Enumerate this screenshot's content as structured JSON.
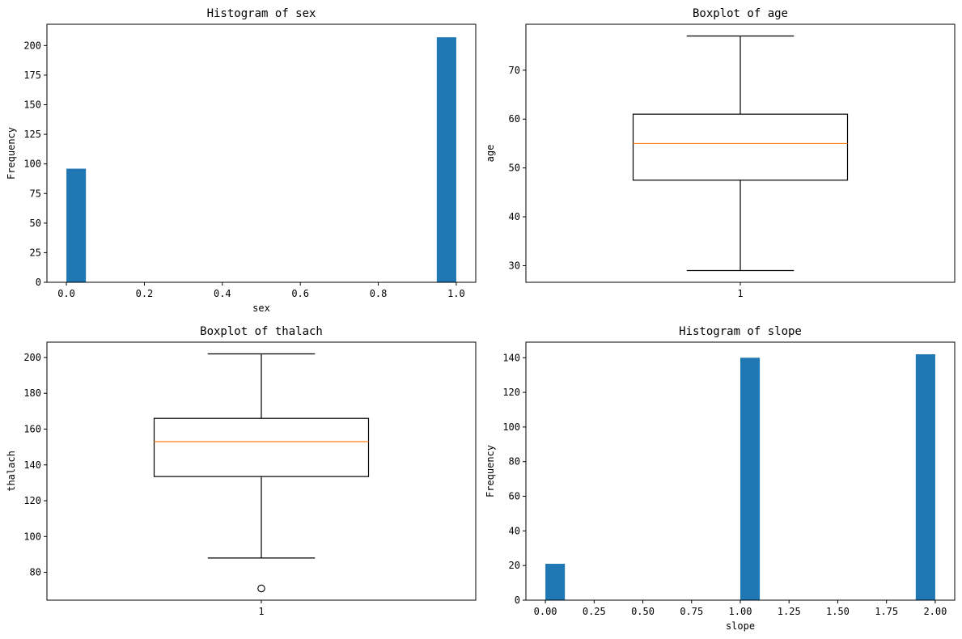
{
  "figure": {
    "background": "#ffffff"
  },
  "chart_data": [
    {
      "type": "bar",
      "subtype": "histogram",
      "title": "Histogram of sex",
      "xlabel": "sex",
      "ylabel": "Frequency",
      "xlim": [
        -0.05,
        1.05
      ],
      "ylim": [
        0,
        218
      ],
      "xticks": [
        0.0,
        0.2,
        0.4,
        0.6,
        0.8,
        1.0
      ],
      "xtick_labels": [
        "0.0",
        "0.2",
        "0.4",
        "0.6",
        "0.8",
        "1.0"
      ],
      "yticks": [
        0,
        25,
        50,
        75,
        100,
        125,
        150,
        175,
        200
      ],
      "ytick_labels": [
        "0",
        "25",
        "50",
        "75",
        "100",
        "125",
        "150",
        "175",
        "200"
      ],
      "bins": [
        {
          "start": 0.0,
          "end": 0.05,
          "value": 96
        },
        {
          "start": 0.95,
          "end": 1.0,
          "value": 207
        }
      ],
      "bar_color": "#1f77b4",
      "grid": false
    },
    {
      "type": "box",
      "title": "Boxplot of age",
      "xlabel": "",
      "ylabel": "age",
      "xlim": [
        0.5,
        1.5
      ],
      "ylim": [
        26.6,
        79.4
      ],
      "xticks": [
        1
      ],
      "xtick_labels": [
        "1"
      ],
      "yticks": [
        30,
        40,
        50,
        60,
        70
      ],
      "ytick_labels": [
        "30",
        "40",
        "50",
        "60",
        "70"
      ],
      "box": {
        "position": 1,
        "whisker_low": 29,
        "q1": 47.5,
        "median": 55,
        "q3": 61,
        "whisker_high": 77,
        "outliers": []
      },
      "median_color": "#ff7f0e",
      "grid": false
    },
    {
      "type": "box",
      "title": "Boxplot of thalach",
      "xlabel": "",
      "ylabel": "thalach",
      "xlim": [
        0.5,
        1.5
      ],
      "ylim": [
        64.44,
        208.56
      ],
      "xticks": [
        1
      ],
      "xtick_labels": [
        "1"
      ],
      "yticks": [
        80,
        100,
        120,
        140,
        160,
        180,
        200
      ],
      "ytick_labels": [
        "80",
        "100",
        "120",
        "140",
        "160",
        "180",
        "200"
      ],
      "box": {
        "position": 1,
        "whisker_low": 88,
        "q1": 133.5,
        "median": 153,
        "q3": 166,
        "whisker_high": 202,
        "outliers": [
          71
        ]
      },
      "median_color": "#ff7f0e",
      "grid": false
    },
    {
      "type": "bar",
      "subtype": "histogram",
      "title": "Histogram of slope",
      "xlabel": "slope",
      "ylabel": "Frequency",
      "xlim": [
        -0.1,
        2.1
      ],
      "ylim": [
        0,
        149
      ],
      "xticks": [
        0.0,
        0.25,
        0.5,
        0.75,
        1.0,
        1.25,
        1.5,
        1.75,
        2.0
      ],
      "xtick_labels": [
        "0.00",
        "0.25",
        "0.50",
        "0.75",
        "1.00",
        "1.25",
        "1.50",
        "1.75",
        "2.00"
      ],
      "yticks": [
        0,
        20,
        40,
        60,
        80,
        100,
        120,
        140
      ],
      "ytick_labels": [
        "0",
        "20",
        "40",
        "60",
        "80",
        "100",
        "120",
        "140"
      ],
      "bins": [
        {
          "start": 0.0,
          "end": 0.1,
          "value": 21
        },
        {
          "start": 1.0,
          "end": 1.1,
          "value": 140
        },
        {
          "start": 1.9,
          "end": 2.0,
          "value": 142
        }
      ],
      "bar_color": "#1f77b4",
      "grid": false
    }
  ]
}
